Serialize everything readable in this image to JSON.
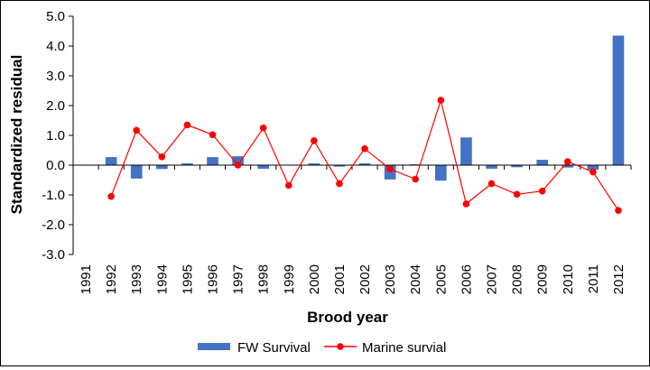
{
  "chart_data": {
    "type": "bar+line",
    "title": "",
    "xlabel": "Brood year",
    "ylabel": "Standardized residual",
    "ylim": [
      -3.0,
      5.0
    ],
    "yticks": [
      "5.0",
      "4.0",
      "3.0",
      "2.0",
      "1.0",
      "0.0",
      "-1.0",
      "-2.0",
      "-3.0"
    ],
    "categories": [
      "1991",
      "1992",
      "1993",
      "1994",
      "1995",
      "1996",
      "1997",
      "1998",
      "1999",
      "2000",
      "2001",
      "2002",
      "2003",
      "2004",
      "2005",
      "2006",
      "2007",
      "2008",
      "2009",
      "2010",
      "2011",
      "2012"
    ],
    "grid": false,
    "legend_position": "bottom",
    "series": [
      {
        "name": "FW Survival",
        "type": "bar",
        "color": "#4472C4",
        "values": [
          0.0,
          0.27,
          -0.45,
          -0.13,
          0.06,
          0.27,
          0.3,
          -0.12,
          0.0,
          0.06,
          -0.05,
          0.06,
          -0.48,
          0.03,
          -0.52,
          0.93,
          -0.12,
          -0.07,
          0.18,
          -0.08,
          -0.15,
          4.35
        ]
      },
      {
        "name": "Marine survial",
        "type": "line",
        "color": "#FF0000",
        "values": [
          null,
          -1.05,
          1.17,
          0.28,
          1.35,
          1.02,
          0.0,
          1.25,
          -0.68,
          0.82,
          -0.62,
          0.55,
          -0.13,
          -0.47,
          2.18,
          -1.3,
          -0.62,
          -0.98,
          -0.87,
          0.12,
          -0.23,
          -1.52
        ]
      }
    ]
  }
}
